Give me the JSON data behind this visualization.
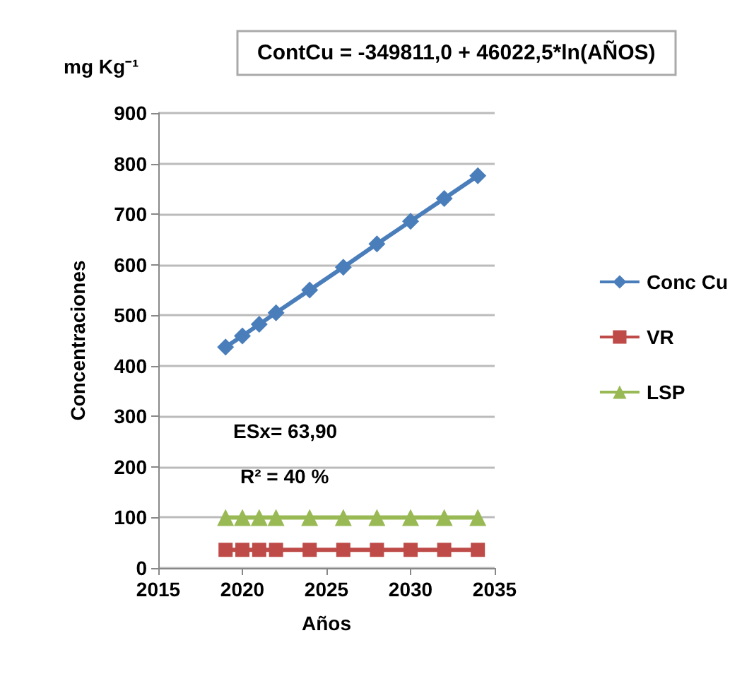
{
  "chart_data": {
    "type": "line",
    "xlabel": "Años",
    "ylabel": "Concentraciones",
    "annotations": [
      "ContCu = -349811,0 + 46022,5*ln(AÑOS)",
      "mg Kg⁻¹",
      "ESx= 63,90",
      "R² = 40 %"
    ],
    "x": [
      2019,
      2020,
      2021,
      2022,
      2024,
      2026,
      2028,
      2030,
      2032,
      2034
    ],
    "series": [
      {
        "name": "Conc Cu",
        "color": "#4a7ebb",
        "marker": "diamond",
        "values": [
          437,
          459,
          482,
          505,
          550,
          595,
          641,
          686,
          731,
          776
        ]
      },
      {
        "name": "VR",
        "color": "#be4b48",
        "marker": "square",
        "values": [
          36,
          36,
          36,
          36,
          36,
          36,
          36,
          36,
          36,
          36
        ]
      },
      {
        "name": "LSP",
        "color": "#98b954",
        "marker": "triangle",
        "values": [
          100,
          100,
          100,
          100,
          100,
          100,
          100,
          100,
          100,
          100
        ]
      }
    ],
    "xlim": [
      2015,
      2035
    ],
    "xticks": [
      2015,
      2020,
      2025,
      2030,
      2035
    ],
    "ylim": [
      0,
      900
    ],
    "yticks": [
      0,
      100,
      200,
      300,
      400,
      500,
      600,
      700,
      800,
      900
    ],
    "grid": "y",
    "legend": "right",
    "line_style": "solid"
  }
}
